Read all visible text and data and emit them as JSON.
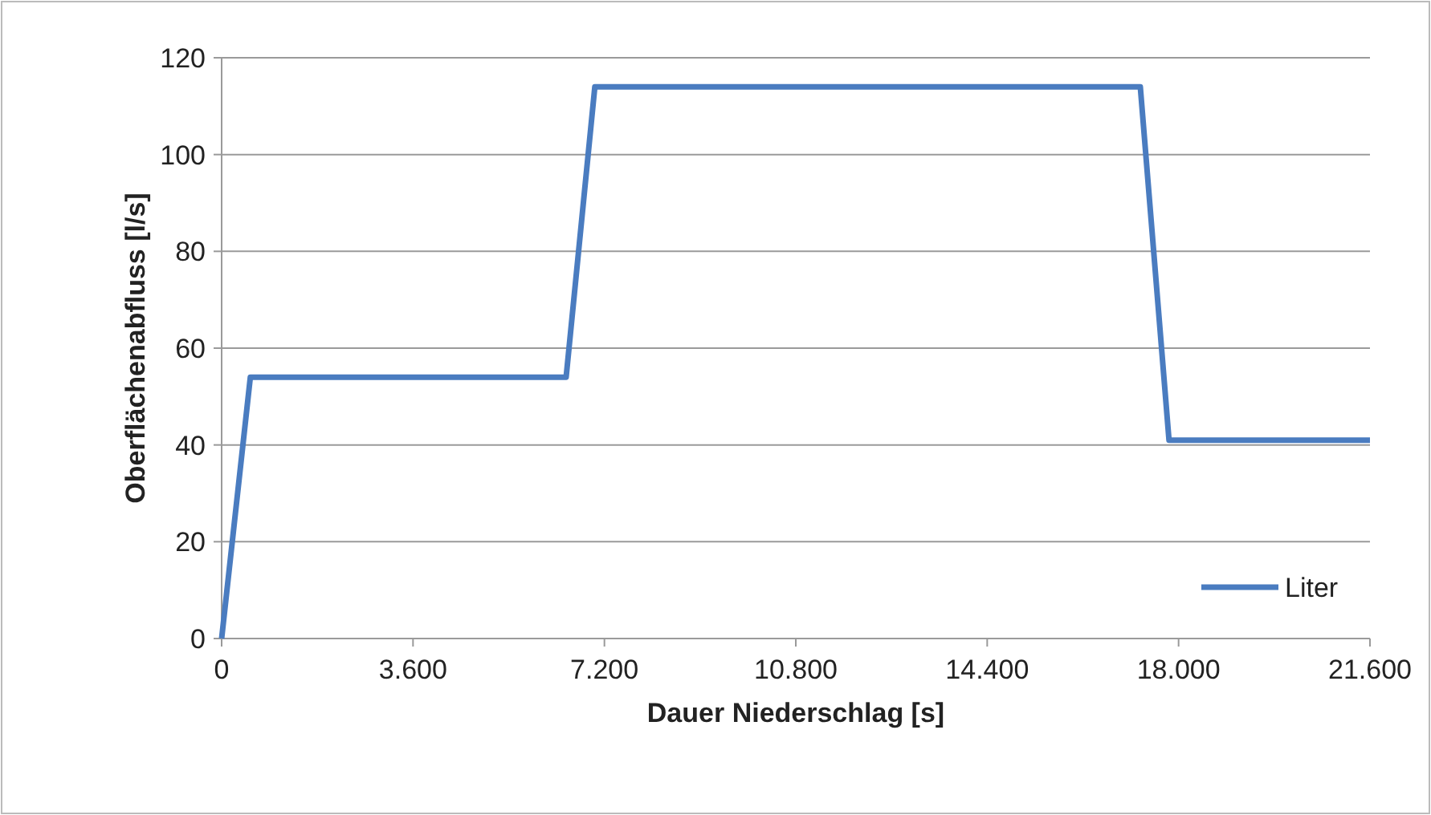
{
  "chart_data": {
    "type": "line",
    "xlabel": "Dauer Niederschlag [s]",
    "ylabel": "Oberflächenabfluss [l/s]",
    "x": [
      0,
      540,
      6480,
      7020,
      17280,
      17820,
      21600
    ],
    "series": [
      {
        "name": "Liter",
        "color": "#4a7cc0",
        "values": [
          0,
          54,
          54,
          114,
          114,
          41,
          41
        ]
      }
    ],
    "xlim": [
      0,
      21600
    ],
    "xticks": [
      0,
      {
        "value": 3600,
        "label": "3.600"
      },
      {
        "value": 7200,
        "label": "7.200"
      },
      {
        "value": 10800,
        "label": "10.800"
      },
      {
        "value": 14400,
        "label": "14.400"
      },
      {
        "value": 18000,
        "label": "18.000"
      },
      {
        "value": 21600,
        "label": "21.600"
      }
    ],
    "ylim": [
      0,
      120
    ],
    "yticks": [
      0,
      20,
      40,
      60,
      80,
      100,
      120
    ],
    "grid": "y",
    "legend": "bottom right",
    "marker": "none",
    "line_style": "solid"
  }
}
